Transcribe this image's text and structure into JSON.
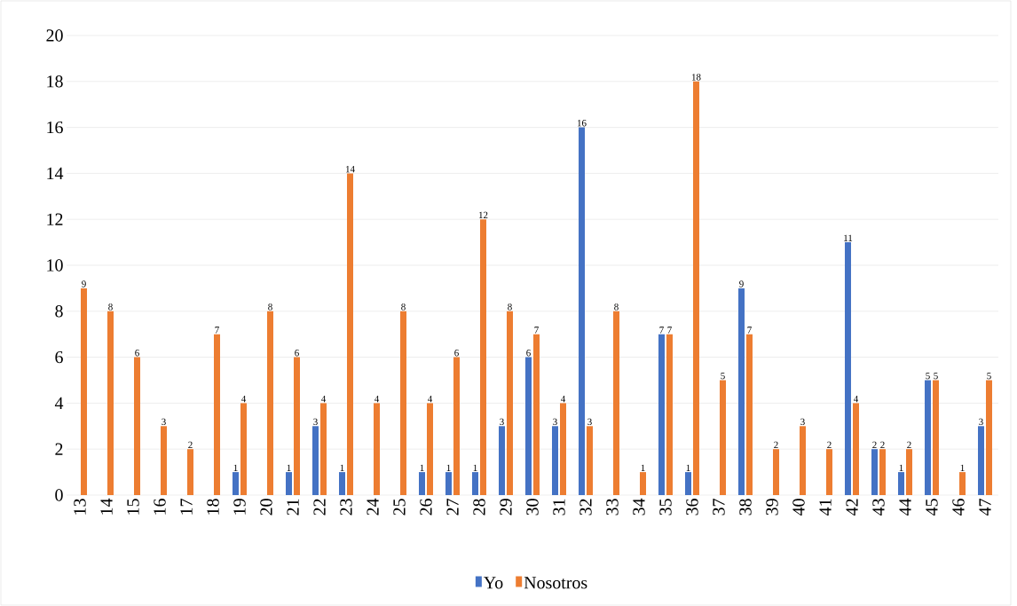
{
  "chart_data": {
    "type": "bar",
    "categories": [
      "13",
      "14",
      "15",
      "16",
      "17",
      "18",
      "19",
      "20",
      "21",
      "22",
      "23",
      "24",
      "25",
      "26",
      "27",
      "28",
      "29",
      "30",
      "31",
      "32",
      "33",
      "34",
      "35",
      "36",
      "37",
      "38",
      "39",
      "40",
      "41",
      "42",
      "43",
      "44",
      "45",
      "46",
      "47"
    ],
    "series": [
      {
        "name": "Yo",
        "color": "#4472c4",
        "values": [
          null,
          null,
          null,
          null,
          null,
          null,
          1,
          null,
          1,
          3,
          1,
          null,
          null,
          1,
          1,
          1,
          3,
          6,
          3,
          16,
          null,
          null,
          7,
          1,
          null,
          9,
          null,
          null,
          null,
          11,
          2,
          1,
          5,
          null,
          3
        ]
      },
      {
        "name": "Nosotros",
        "color": "#ed7d31",
        "values": [
          9,
          8,
          6,
          3,
          2,
          7,
          4,
          8,
          6,
          4,
          14,
          4,
          8,
          4,
          6,
          12,
          8,
          7,
          4,
          3,
          8,
          1,
          7,
          18,
          5,
          7,
          2,
          3,
          2,
          4,
          2,
          2,
          5,
          1,
          5
        ]
      }
    ],
    "ylim": [
      0,
      20
    ],
    "yticks": [
      0,
      2,
      4,
      6,
      8,
      10,
      12,
      14,
      16,
      18,
      20
    ],
    "grid": "y",
    "legend": "bottom",
    "data_labels": true
  }
}
